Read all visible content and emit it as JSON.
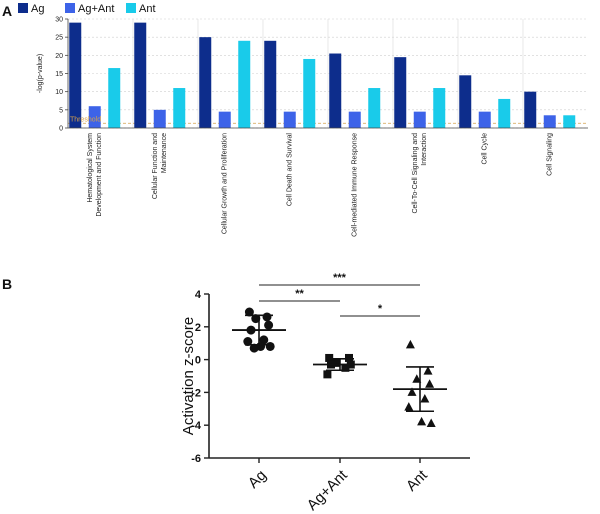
{
  "colors": {
    "ag": "#0d2d8c",
    "ag_ant": "#3d63e8",
    "ant": "#19cbea",
    "threshold": "#d4a04a"
  },
  "chart_data": [
    {
      "panel": "A",
      "type": "bar",
      "ylabel": "-log(p-value)",
      "ylim": [
        0,
        30
      ],
      "yticks": [
        0,
        5,
        10,
        15,
        20,
        25,
        30
      ],
      "threshold": {
        "label": "Threshold",
        "value": 1.3
      },
      "legend": {
        "placement": "top-left",
        "entries": [
          "Ag",
          "Ag+Ant",
          "Ant"
        ]
      },
      "categories": [
        [
          "Hematological System",
          "Development and Function"
        ],
        [
          "Cellular Function and",
          "Maintenance"
        ],
        [
          "Cellular Growth and Proliferation"
        ],
        [
          "Cell Death and Survival"
        ],
        [
          "Cell-mediated Immune Response"
        ],
        [
          "Cell-To-Cell Signaling and",
          "Interaction"
        ],
        [
          "Cell Cycle"
        ],
        [
          "Cell Signaling"
        ]
      ],
      "series": [
        {
          "name": "Ag",
          "values": [
            29,
            29,
            25,
            24,
            20.5,
            19.5,
            14.5,
            10
          ]
        },
        {
          "name": "Ag+Ant",
          "values": [
            6,
            5,
            4.5,
            4.5,
            4.5,
            4.5,
            4.5,
            3.5
          ]
        },
        {
          "name": "Ant",
          "values": [
            16.5,
            11,
            24,
            19,
            11,
            11,
            8,
            3.5
          ]
        }
      ]
    },
    {
      "panel": "B",
      "type": "scatter",
      "ylabel": "Activation z-score",
      "ylim": [
        -6,
        4
      ],
      "yticks": [
        4,
        2,
        0,
        -2,
        -4,
        -6
      ],
      "categories": [
        "Ag",
        "Ag+Ant",
        "Ant"
      ],
      "groups": [
        {
          "name": "Ag",
          "marker": "circle",
          "mean": 1.8,
          "sd": 0.9,
          "points": [
            2.9,
            2.6,
            2.5,
            2.1,
            1.8,
            1.2,
            1.1,
            0.8,
            0.8,
            0.7
          ]
        },
        {
          "name": "Ag+Ant",
          "marker": "square",
          "mean": -0.3,
          "sd": 0.35,
          "points": [
            0.1,
            0.1,
            -0.2,
            -0.3,
            -0.3,
            -0.5,
            -0.9
          ]
        },
        {
          "name": "Ant",
          "marker": "triangle",
          "mean": -1.8,
          "sd": 1.35,
          "points": [
            0.9,
            -0.7,
            -1.2,
            -1.5,
            -2.0,
            -2.4,
            -2.9,
            -3.8,
            -3.9
          ]
        }
      ],
      "significance": [
        {
          "from": 0,
          "to": 2,
          "label": "***"
        },
        {
          "from": 0,
          "to": 1,
          "label": "**"
        },
        {
          "from": 1,
          "to": 2,
          "label": "*"
        }
      ]
    }
  ]
}
